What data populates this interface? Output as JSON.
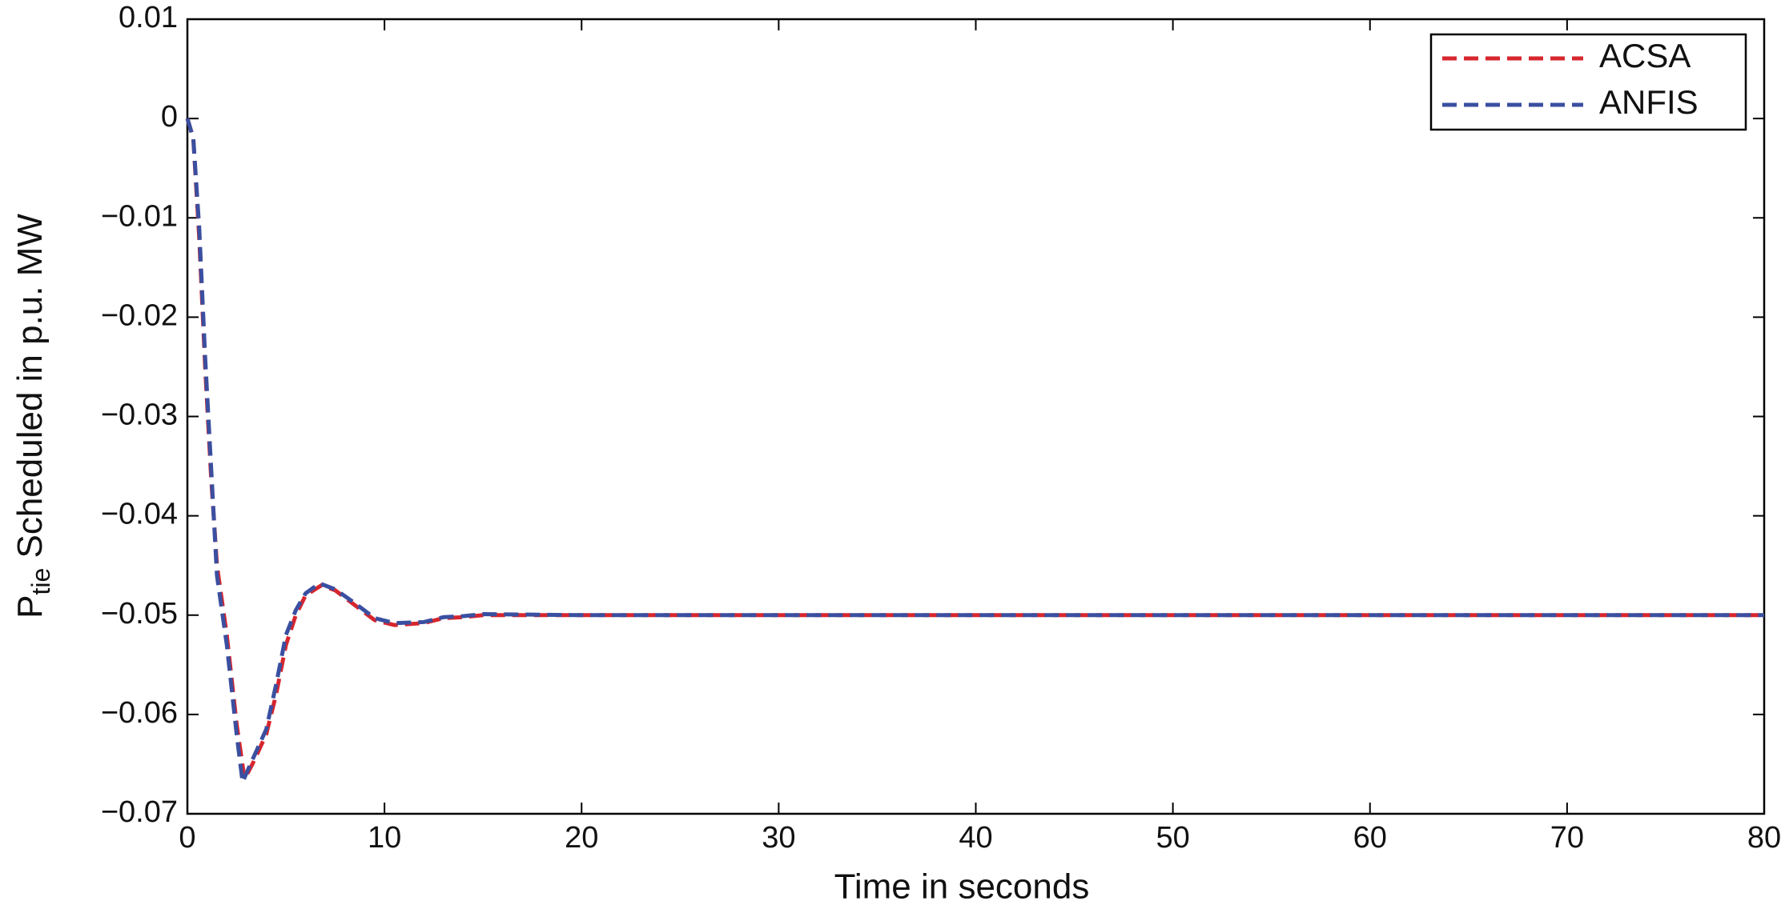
{
  "chart_data": {
    "type": "line",
    "y_label": {
      "main": "P",
      "sub": "tie",
      "rest": " Scheduled in p.u. MW"
    },
    "x_label": "Time in seconds",
    "xlim": [
      0,
      80
    ],
    "xticks": [
      0,
      10,
      20,
      30,
      40,
      50,
      60,
      70,
      80
    ],
    "ylim": [
      -0.07,
      0.01
    ],
    "yticks": [
      {
        "value": -0.07,
        "label": "−0.07"
      },
      {
        "value": -0.06,
        "label": "−0.06"
      },
      {
        "value": -0.05,
        "label": "−0.05"
      },
      {
        "value": -0.04,
        "label": "−0.04"
      },
      {
        "value": -0.03,
        "label": "−0.03"
      },
      {
        "value": -0.02,
        "label": "−0.02"
      },
      {
        "value": -0.01,
        "label": "−0.01"
      },
      0,
      0.01
    ],
    "legend": "top-right",
    "line_style": "dashed",
    "series": [
      {
        "name": "ACSA",
        "color": "#d7262e",
        "x": [
          0,
          0.3,
          0.6,
          0.9,
          1.2,
          1.5,
          2,
          2.5,
          2.9,
          3.3,
          4,
          4.5,
          5,
          5.5,
          6,
          6.8,
          7.5,
          8.5,
          9.5,
          10.5,
          12,
          13,
          14,
          15,
          20,
          80
        ],
        "values": [
          0,
          -0.002,
          -0.012,
          -0.025,
          -0.036,
          -0.045,
          -0.052,
          -0.061,
          -0.0665,
          -0.065,
          -0.062,
          -0.058,
          -0.053,
          -0.05,
          -0.048,
          -0.047,
          -0.0475,
          -0.049,
          -0.0505,
          -0.051,
          -0.0508,
          -0.0503,
          -0.0502,
          -0.05,
          -0.05,
          -0.05
        ]
      },
      {
        "name": "ANFIS",
        "color": "#3a4fa0",
        "x": [
          0,
          0.3,
          0.6,
          0.9,
          1.2,
          1.5,
          2,
          2.5,
          2.8,
          3.2,
          4,
          4.5,
          5,
          5.5,
          6,
          6.7,
          7.5,
          8.5,
          9.5,
          10.5,
          12,
          13,
          14,
          15,
          20,
          80
        ],
        "values": [
          0,
          -0.002,
          -0.011,
          -0.024,
          -0.035,
          -0.046,
          -0.053,
          -0.062,
          -0.0668,
          -0.065,
          -0.0615,
          -0.057,
          -0.052,
          -0.0495,
          -0.0478,
          -0.0468,
          -0.0474,
          -0.0488,
          -0.0503,
          -0.0508,
          -0.0507,
          -0.0502,
          -0.0501,
          -0.0499,
          -0.05,
          -0.05
        ]
      }
    ]
  }
}
